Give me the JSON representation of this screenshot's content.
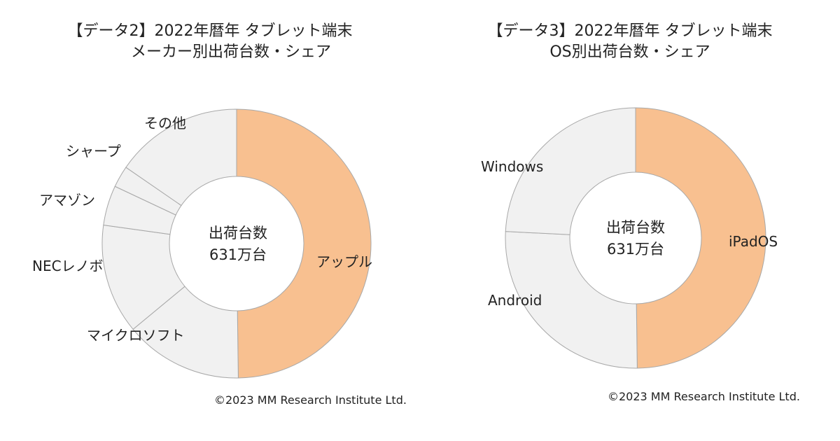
{
  "chart_data": [
    {
      "type": "pie",
      "title": "【データ2】2022年暦年 タブレット端末",
      "subtitle": "メーカー別出荷台数・シェア",
      "center_label": [
        "出荷台数",
        "631万台"
      ],
      "categories": [
        "アップル",
        "マイクロソフト",
        "NECレノボ",
        "アマゾン",
        "シャープ",
        "その他"
      ],
      "values": [
        49.8,
        14.2,
        13.2,
        4.8,
        2.6,
        15.4
      ],
      "colors": [
        "#f8c090",
        "#f1f1f1",
        "#f1f1f1",
        "#f1f1f1",
        "#f1f1f1",
        "#f1f1f1"
      ],
      "copyright": "©2023  MM Research Institute Ltd."
    },
    {
      "type": "pie",
      "title": "【データ3】2022年暦年 タブレット端末",
      "subtitle": "OS別出荷台数・シェア",
      "center_label": [
        "出荷台数",
        "631万台"
      ],
      "categories": [
        "iPadOS",
        "Android",
        "Windows"
      ],
      "values": [
        49.8,
        26.0,
        24.2
      ],
      "colors": [
        "#f8c090",
        "#f1f1f1",
        "#f1f1f1"
      ],
      "copyright": "©2023  MM Research Institute Ltd."
    }
  ]
}
